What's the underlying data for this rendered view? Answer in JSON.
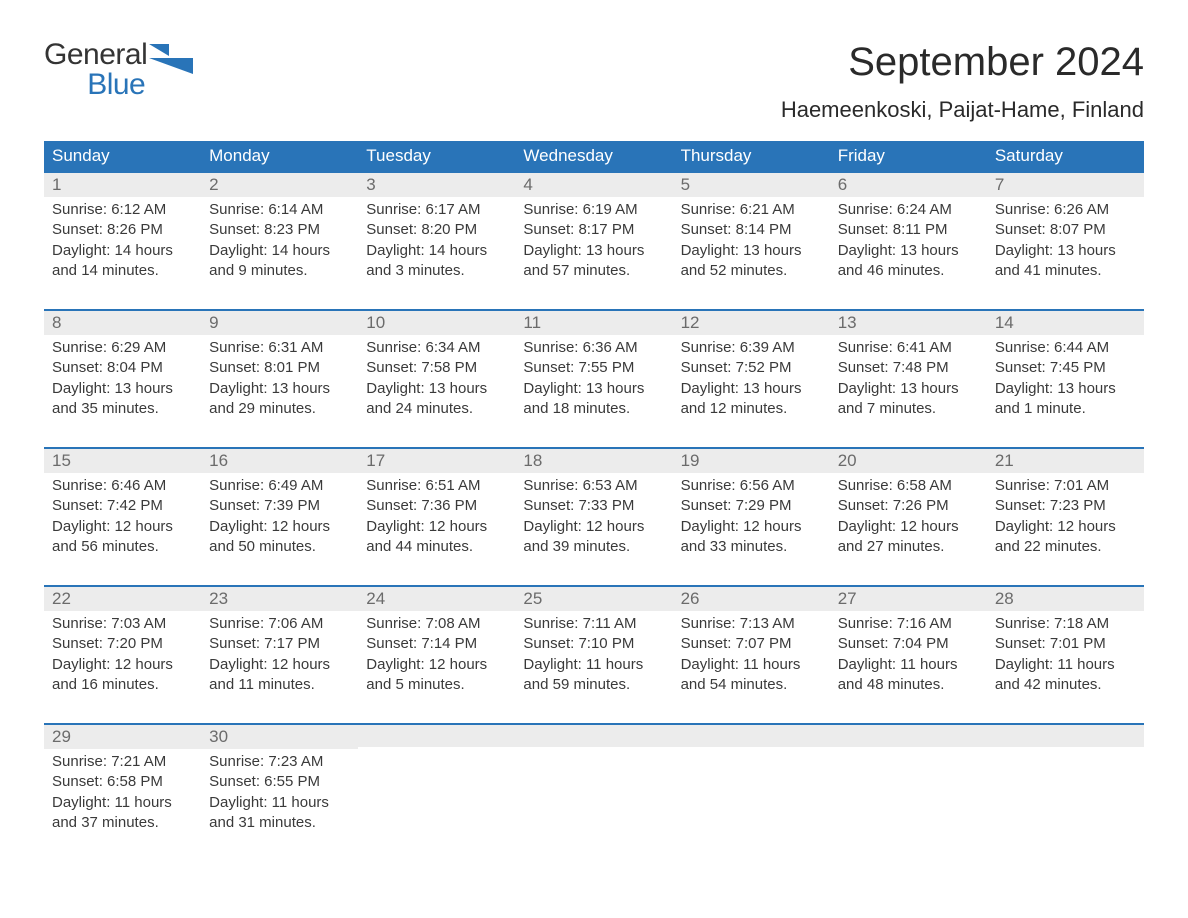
{
  "brand": {
    "a": "General",
    "b": "Blue",
    "accent": "#2974b8"
  },
  "title": "September 2024",
  "subtitle": "Haemeenkoski, Paijat-Hame, Finland",
  "columns": [
    "Sunday",
    "Monday",
    "Tuesday",
    "Wednesday",
    "Thursday",
    "Friday",
    "Saturday"
  ],
  "colors": {
    "header_bg": "#2974b8",
    "header_fg": "#ffffff",
    "daynum_bg": "#ececec",
    "daynum_fg": "#6b6b6b",
    "row_border": "#2974b8",
    "text": "#3a3a3a",
    "background": "#ffffff"
  },
  "weeks": [
    [
      {
        "n": "1",
        "sr": "Sunrise: 6:12 AM",
        "ss": "Sunset: 8:26 PM",
        "d1": "Daylight: 14 hours",
        "d2": "and 14 minutes."
      },
      {
        "n": "2",
        "sr": "Sunrise: 6:14 AM",
        "ss": "Sunset: 8:23 PM",
        "d1": "Daylight: 14 hours",
        "d2": "and 9 minutes."
      },
      {
        "n": "3",
        "sr": "Sunrise: 6:17 AM",
        "ss": "Sunset: 8:20 PM",
        "d1": "Daylight: 14 hours",
        "d2": "and 3 minutes."
      },
      {
        "n": "4",
        "sr": "Sunrise: 6:19 AM",
        "ss": "Sunset: 8:17 PM",
        "d1": "Daylight: 13 hours",
        "d2": "and 57 minutes."
      },
      {
        "n": "5",
        "sr": "Sunrise: 6:21 AM",
        "ss": "Sunset: 8:14 PM",
        "d1": "Daylight: 13 hours",
        "d2": "and 52 minutes."
      },
      {
        "n": "6",
        "sr": "Sunrise: 6:24 AM",
        "ss": "Sunset: 8:11 PM",
        "d1": "Daylight: 13 hours",
        "d2": "and 46 minutes."
      },
      {
        "n": "7",
        "sr": "Sunrise: 6:26 AM",
        "ss": "Sunset: 8:07 PM",
        "d1": "Daylight: 13 hours",
        "d2": "and 41 minutes."
      }
    ],
    [
      {
        "n": "8",
        "sr": "Sunrise: 6:29 AM",
        "ss": "Sunset: 8:04 PM",
        "d1": "Daylight: 13 hours",
        "d2": "and 35 minutes."
      },
      {
        "n": "9",
        "sr": "Sunrise: 6:31 AM",
        "ss": "Sunset: 8:01 PM",
        "d1": "Daylight: 13 hours",
        "d2": "and 29 minutes."
      },
      {
        "n": "10",
        "sr": "Sunrise: 6:34 AM",
        "ss": "Sunset: 7:58 PM",
        "d1": "Daylight: 13 hours",
        "d2": "and 24 minutes."
      },
      {
        "n": "11",
        "sr": "Sunrise: 6:36 AM",
        "ss": "Sunset: 7:55 PM",
        "d1": "Daylight: 13 hours",
        "d2": "and 18 minutes."
      },
      {
        "n": "12",
        "sr": "Sunrise: 6:39 AM",
        "ss": "Sunset: 7:52 PM",
        "d1": "Daylight: 13 hours",
        "d2": "and 12 minutes."
      },
      {
        "n": "13",
        "sr": "Sunrise: 6:41 AM",
        "ss": "Sunset: 7:48 PM",
        "d1": "Daylight: 13 hours",
        "d2": "and 7 minutes."
      },
      {
        "n": "14",
        "sr": "Sunrise: 6:44 AM",
        "ss": "Sunset: 7:45 PM",
        "d1": "Daylight: 13 hours",
        "d2": "and 1 minute."
      }
    ],
    [
      {
        "n": "15",
        "sr": "Sunrise: 6:46 AM",
        "ss": "Sunset: 7:42 PM",
        "d1": "Daylight: 12 hours",
        "d2": "and 56 minutes."
      },
      {
        "n": "16",
        "sr": "Sunrise: 6:49 AM",
        "ss": "Sunset: 7:39 PM",
        "d1": "Daylight: 12 hours",
        "d2": "and 50 minutes."
      },
      {
        "n": "17",
        "sr": "Sunrise: 6:51 AM",
        "ss": "Sunset: 7:36 PM",
        "d1": "Daylight: 12 hours",
        "d2": "and 44 minutes."
      },
      {
        "n": "18",
        "sr": "Sunrise: 6:53 AM",
        "ss": "Sunset: 7:33 PM",
        "d1": "Daylight: 12 hours",
        "d2": "and 39 minutes."
      },
      {
        "n": "19",
        "sr": "Sunrise: 6:56 AM",
        "ss": "Sunset: 7:29 PM",
        "d1": "Daylight: 12 hours",
        "d2": "and 33 minutes."
      },
      {
        "n": "20",
        "sr": "Sunrise: 6:58 AM",
        "ss": "Sunset: 7:26 PM",
        "d1": "Daylight: 12 hours",
        "d2": "and 27 minutes."
      },
      {
        "n": "21",
        "sr": "Sunrise: 7:01 AM",
        "ss": "Sunset: 7:23 PM",
        "d1": "Daylight: 12 hours",
        "d2": "and 22 minutes."
      }
    ],
    [
      {
        "n": "22",
        "sr": "Sunrise: 7:03 AM",
        "ss": "Sunset: 7:20 PM",
        "d1": "Daylight: 12 hours",
        "d2": "and 16 minutes."
      },
      {
        "n": "23",
        "sr": "Sunrise: 7:06 AM",
        "ss": "Sunset: 7:17 PM",
        "d1": "Daylight: 12 hours",
        "d2": "and 11 minutes."
      },
      {
        "n": "24",
        "sr": "Sunrise: 7:08 AM",
        "ss": "Sunset: 7:14 PM",
        "d1": "Daylight: 12 hours",
        "d2": "and 5 minutes."
      },
      {
        "n": "25",
        "sr": "Sunrise: 7:11 AM",
        "ss": "Sunset: 7:10 PM",
        "d1": "Daylight: 11 hours",
        "d2": "and 59 minutes."
      },
      {
        "n": "26",
        "sr": "Sunrise: 7:13 AM",
        "ss": "Sunset: 7:07 PM",
        "d1": "Daylight: 11 hours",
        "d2": "and 54 minutes."
      },
      {
        "n": "27",
        "sr": "Sunrise: 7:16 AM",
        "ss": "Sunset: 7:04 PM",
        "d1": "Daylight: 11 hours",
        "d2": "and 48 minutes."
      },
      {
        "n": "28",
        "sr": "Sunrise: 7:18 AM",
        "ss": "Sunset: 7:01 PM",
        "d1": "Daylight: 11 hours",
        "d2": "and 42 minutes."
      }
    ],
    [
      {
        "n": "29",
        "sr": "Sunrise: 7:21 AM",
        "ss": "Sunset: 6:58 PM",
        "d1": "Daylight: 11 hours",
        "d2": "and 37 minutes."
      },
      {
        "n": "30",
        "sr": "Sunrise: 7:23 AM",
        "ss": "Sunset: 6:55 PM",
        "d1": "Daylight: 11 hours",
        "d2": "and 31 minutes."
      },
      {
        "n": "",
        "sr": "",
        "ss": "",
        "d1": "",
        "d2": ""
      },
      {
        "n": "",
        "sr": "",
        "ss": "",
        "d1": "",
        "d2": ""
      },
      {
        "n": "",
        "sr": "",
        "ss": "",
        "d1": "",
        "d2": ""
      },
      {
        "n": "",
        "sr": "",
        "ss": "",
        "d1": "",
        "d2": ""
      },
      {
        "n": "",
        "sr": "",
        "ss": "",
        "d1": "",
        "d2": ""
      }
    ]
  ]
}
